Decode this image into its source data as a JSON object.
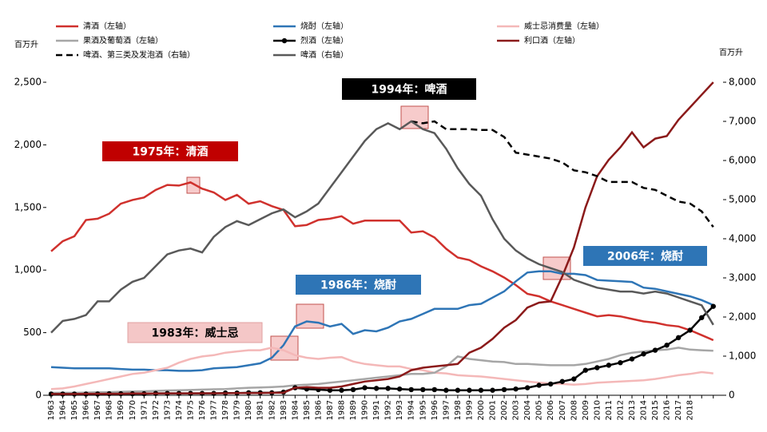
{
  "chart_data": {
    "type": "line",
    "ylabel": "百万升",
    "y2label": "百万升",
    "categories": [
      "1963",
      "1964",
      "1965",
      "1966",
      "1967",
      "1968",
      "1969",
      "1970",
      "1971",
      "1972",
      "1973",
      "1974",
      "1975",
      "1976",
      "1977",
      "1978",
      "1979",
      "1980",
      "1981",
      "1982",
      "1983",
      "1984",
      "1985",
      "1986",
      "1987",
      "1988",
      "1989",
      "1990",
      "1991",
      "1992",
      "1993",
      "1994",
      "1995",
      "1996",
      "1997",
      "1998",
      "1999",
      "2000",
      "2001",
      "2002",
      "2003",
      "2004",
      "2005",
      "2006",
      "2007",
      "2008",
      "2009",
      "2010",
      "2011",
      "2012",
      "2013",
      "2014",
      "2015",
      "2016",
      "2017",
      "2018",
      null,
      null
    ],
    "ylim": [
      0,
      2500
    ],
    "yticks": [
      0,
      500,
      {
        "value": 1000,
        "label": "1,000"
      },
      {
        "value": 1500,
        "label": "1,500"
      },
      {
        "value": 2000,
        "label": "2,000"
      },
      {
        "value": 2500,
        "label": "2,500"
      }
    ],
    "y2lim": [
      0,
      8000
    ],
    "y2ticks": [
      0,
      {
        "value": 1000,
        "label": "1,000"
      },
      {
        "value": 2000,
        "label": "2,000"
      },
      {
        "value": 3000,
        "label": "3,000"
      },
      {
        "value": 4000,
        "label": "4,000"
      },
      {
        "value": 5000,
        "label": "5,000"
      },
      {
        "value": 6000,
        "label": "6,000"
      },
      {
        "value": 7000,
        "label": "7,000"
      },
      {
        "value": 8000,
        "label": "8,000"
      }
    ],
    "series": [
      {
        "name": "清酒（左轴）",
        "color": "#d0312d",
        "values": [
          1150,
          1230,
          1270,
          1400,
          1410,
          1450,
          1530,
          1560,
          1580,
          1640,
          1680,
          1675,
          1700,
          1650,
          1620,
          1560,
          1600,
          1530,
          1550,
          1510,
          1480,
          1350,
          1360,
          1400,
          1410,
          1430,
          1370,
          1395,
          1395,
          1395,
          1395,
          1300,
          1310,
          1260,
          1170,
          1100,
          1080,
          1030,
          990,
          940,
          880,
          810,
          790,
          750,
          720,
          690,
          660,
          630,
          640,
          630,
          610,
          590,
          580,
          560,
          550,
          520,
          480,
          440
        ]
      },
      {
        "name": "烧酎（左轴）",
        "color": "#2e75b6",
        "values": [
          225,
          220,
          215,
          215,
          215,
          215,
          210,
          205,
          205,
          200,
          200,
          195,
          195,
          200,
          215,
          220,
          225,
          240,
          255,
          300,
          400,
          550,
          590,
          580,
          550,
          570,
          490,
          520,
          510,
          540,
          590,
          610,
          650,
          690,
          690,
          690,
          720,
          730,
          780,
          830,
          910,
          980,
          990,
          990,
          970,
          970,
          960,
          920,
          915,
          910,
          905,
          860,
          850,
          830,
          810,
          790,
          760,
          720
        ]
      },
      {
        "name": "威士忌消费量（左轴）",
        "color": "#f4b8b8",
        "values": [
          50,
          55,
          70,
          90,
          110,
          130,
          150,
          170,
          180,
          200,
          220,
          260,
          290,
          310,
          320,
          340,
          350,
          360,
          360,
          380,
          360,
          320,
          300,
          290,
          300,
          305,
          270,
          250,
          240,
          230,
          230,
          210,
          200,
          180,
          175,
          160,
          155,
          150,
          140,
          130,
          120,
          110,
          100,
          95,
          90,
          85,
          90,
          100,
          105,
          110,
          115,
          120,
          130,
          145,
          160,
          170,
          185,
          175
        ]
      },
      {
        "name": "果酒及葡萄酒（左轴）",
        "color": "#a6a6a6",
        "values": [
          20,
          20,
          20,
          22,
          25,
          25,
          28,
          30,
          32,
          35,
          38,
          40,
          42,
          45,
          48,
          50,
          55,
          60,
          62,
          65,
          70,
          80,
          85,
          90,
          100,
          110,
          120,
          130,
          140,
          150,
          160,
          170,
          170,
          180,
          230,
          310,
          290,
          280,
          270,
          265,
          250,
          250,
          245,
          240,
          240,
          240,
          250,
          270,
          290,
          320,
          340,
          350,
          360,
          365,
          380,
          365,
          360,
          355
        ]
      },
      {
        "name": "烈酒（左轴）",
        "color": "#000000",
        "marker": "circle",
        "values": [
          10,
          10,
          10,
          10,
          10,
          12,
          12,
          12,
          12,
          15,
          15,
          15,
          15,
          15,
          15,
          18,
          18,
          20,
          20,
          20,
          25,
          60,
          50,
          45,
          40,
          40,
          45,
          60,
          55,
          55,
          50,
          45,
          45,
          45,
          40,
          40,
          40,
          40,
          40,
          45,
          50,
          60,
          80,
          90,
          110,
          130,
          200,
          220,
          240,
          260,
          290,
          330,
          360,
          400,
          460,
          520,
          620,
          710
        ]
      },
      {
        "name": "利口酒（左轴）",
        "color": "#8b1a1a",
        "values": [
          10,
          10,
          10,
          12,
          12,
          12,
          12,
          14,
          14,
          14,
          15,
          15,
          15,
          16,
          16,
          16,
          18,
          18,
          18,
          20,
          20,
          60,
          65,
          60,
          60,
          70,
          90,
          110,
          120,
          130,
          150,
          200,
          220,
          230,
          240,
          250,
          340,
          380,
          450,
          540,
          600,
          700,
          740,
          750,
          950,
          1180,
          1500,
          1750,
          1880,
          1980,
          2100,
          1980,
          2050,
          2070,
          2200,
          2300,
          2400,
          2500
        ]
      },
      {
        "name": "啤酒、第三类及发泡酒（右轴）",
        "color": "#000000",
        "axis": "y2",
        "dash": "dashed",
        "values": [
          null,
          null,
          null,
          null,
          null,
          null,
          null,
          null,
          null,
          null,
          null,
          null,
          null,
          null,
          null,
          null,
          null,
          null,
          null,
          null,
          null,
          null,
          null,
          null,
          null,
          null,
          null,
          null,
          null,
          null,
          null,
          7000,
          6950,
          7000,
          6800,
          6800,
          6800,
          6780,
          6780,
          6600,
          6200,
          6150,
          6100,
          6050,
          5950,
          5750,
          5700,
          5600,
          5450,
          5450,
          5450,
          5300,
          5250,
          5100,
          4950,
          4900,
          4700,
          4300
        ]
      },
      {
        "name": "啤酒（右轴）",
        "color": "#595959",
        "axis": "y2",
        "values": [
          1600,
          1900,
          1950,
          2050,
          2400,
          2400,
          2700,
          2900,
          3000,
          3300,
          3600,
          3700,
          3750,
          3650,
          4050,
          4300,
          4450,
          4350,
          4500,
          4650,
          4750,
          4550,
          4700,
          4900,
          5300,
          5700,
          6100,
          6500,
          6800,
          6950,
          6800,
          7000,
          6800,
          6700,
          6300,
          5800,
          5400,
          5100,
          4500,
          4000,
          3700,
          3500,
          3350,
          3250,
          3150,
          2950,
          2850,
          2750,
          2700,
          2650,
          2650,
          2600,
          2650,
          2600,
          2500,
          2400,
          2300,
          1800
        ]
      }
    ],
    "annotations": [
      "1975年：清酒",
      "1994年：啤酒",
      "2006年：烧酎",
      "1986年：烧酎",
      "1983年：威士忌"
    ]
  }
}
